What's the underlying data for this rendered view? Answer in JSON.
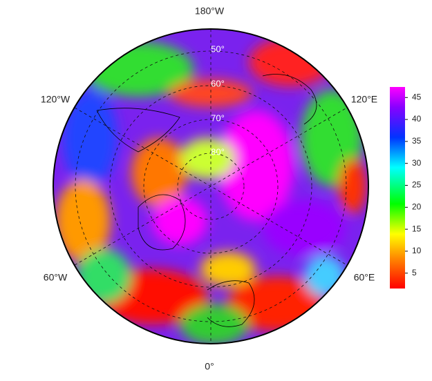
{
  "map": {
    "longitude_labels": [
      "180°W",
      "120°W",
      "120°E",
      "60°W",
      "60°E",
      "0°"
    ],
    "latitude_labels": [
      "50°",
      "60°",
      "70°",
      "80°"
    ],
    "colorbar": {
      "range": [
        1.5,
        47.4
      ],
      "ticks": [
        5,
        10,
        15,
        20,
        25,
        30,
        35,
        40,
        45
      ]
    }
  }
}
